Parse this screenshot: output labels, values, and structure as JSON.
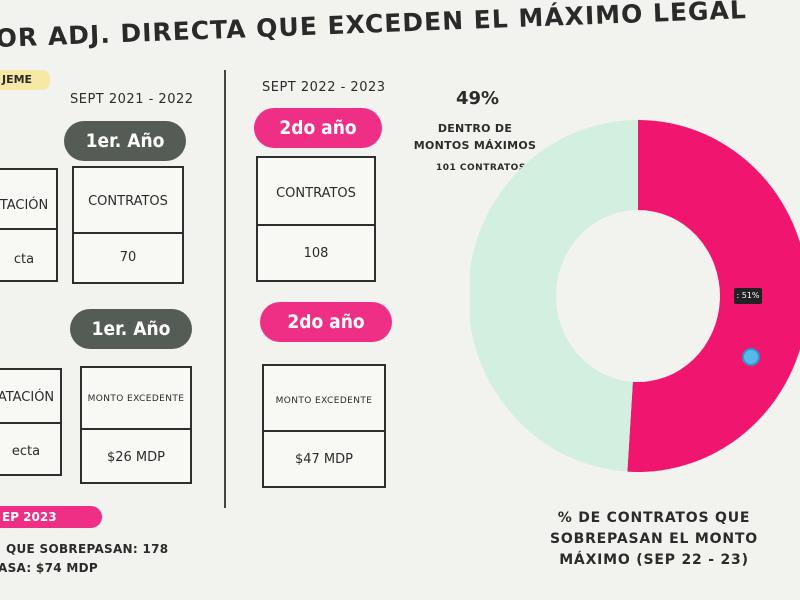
{
  "header": {
    "title": "OR ADJ. DIRECTA QUE EXCEDEN EL MÁXIMO LEGAL",
    "tag": "JEME"
  },
  "left_panel": {
    "period": "SEPT 2021 - 2022",
    "pill_1": "1er. Año",
    "contracts_header_partial": "TACIÓN",
    "contracts_row_partial": "cta",
    "contracts_header": "CONTRATOS",
    "contracts_value": "70",
    "pill_2": "1er. Año",
    "amount_header_partial": "ATACIÓN",
    "amount_row_partial": "ecta",
    "amount_header": "MONTO EXCEDENTE",
    "amount_value": "$26 MDP"
  },
  "middle_panel": {
    "period": "SEPT 2022 - 2023",
    "pill_1": "2do año",
    "contracts_header": "CONTRATOS",
    "contracts_value": "108",
    "pill_2": "2do año",
    "amount_header": "MONTO EXCEDENTE",
    "amount_value": "$47 MDP"
  },
  "footer": {
    "tag": "EP 2023",
    "line_1": "QUE SOBREPASAN: 178",
    "line_2": "ASA: $74 MDP"
  },
  "chart_data": {
    "type": "pie",
    "title": "% DE CONTRATOS QUE SOBREPASAN EL MONTO MÁXIMO (SEP 22 - 23)",
    "caption_lines": [
      "% DE CONTRATOS QUE",
      "SOBREPASAN EL MONTO",
      "MÁXIMO (SEP 22 - 23)"
    ],
    "slices": [
      {
        "name": "Sobrepasan el monto máximo",
        "value": 51,
        "label": ": 51%",
        "color": "#f0166f"
      },
      {
        "name": "Dentro de montos máximos",
        "value": 49,
        "label": "49%",
        "color": "#d3efdf"
      }
    ],
    "annotation": {
      "percent": "49%",
      "text": "DENTRO DE MONTOS MÁXIMOS",
      "count": "101 CONTRATOS"
    }
  }
}
